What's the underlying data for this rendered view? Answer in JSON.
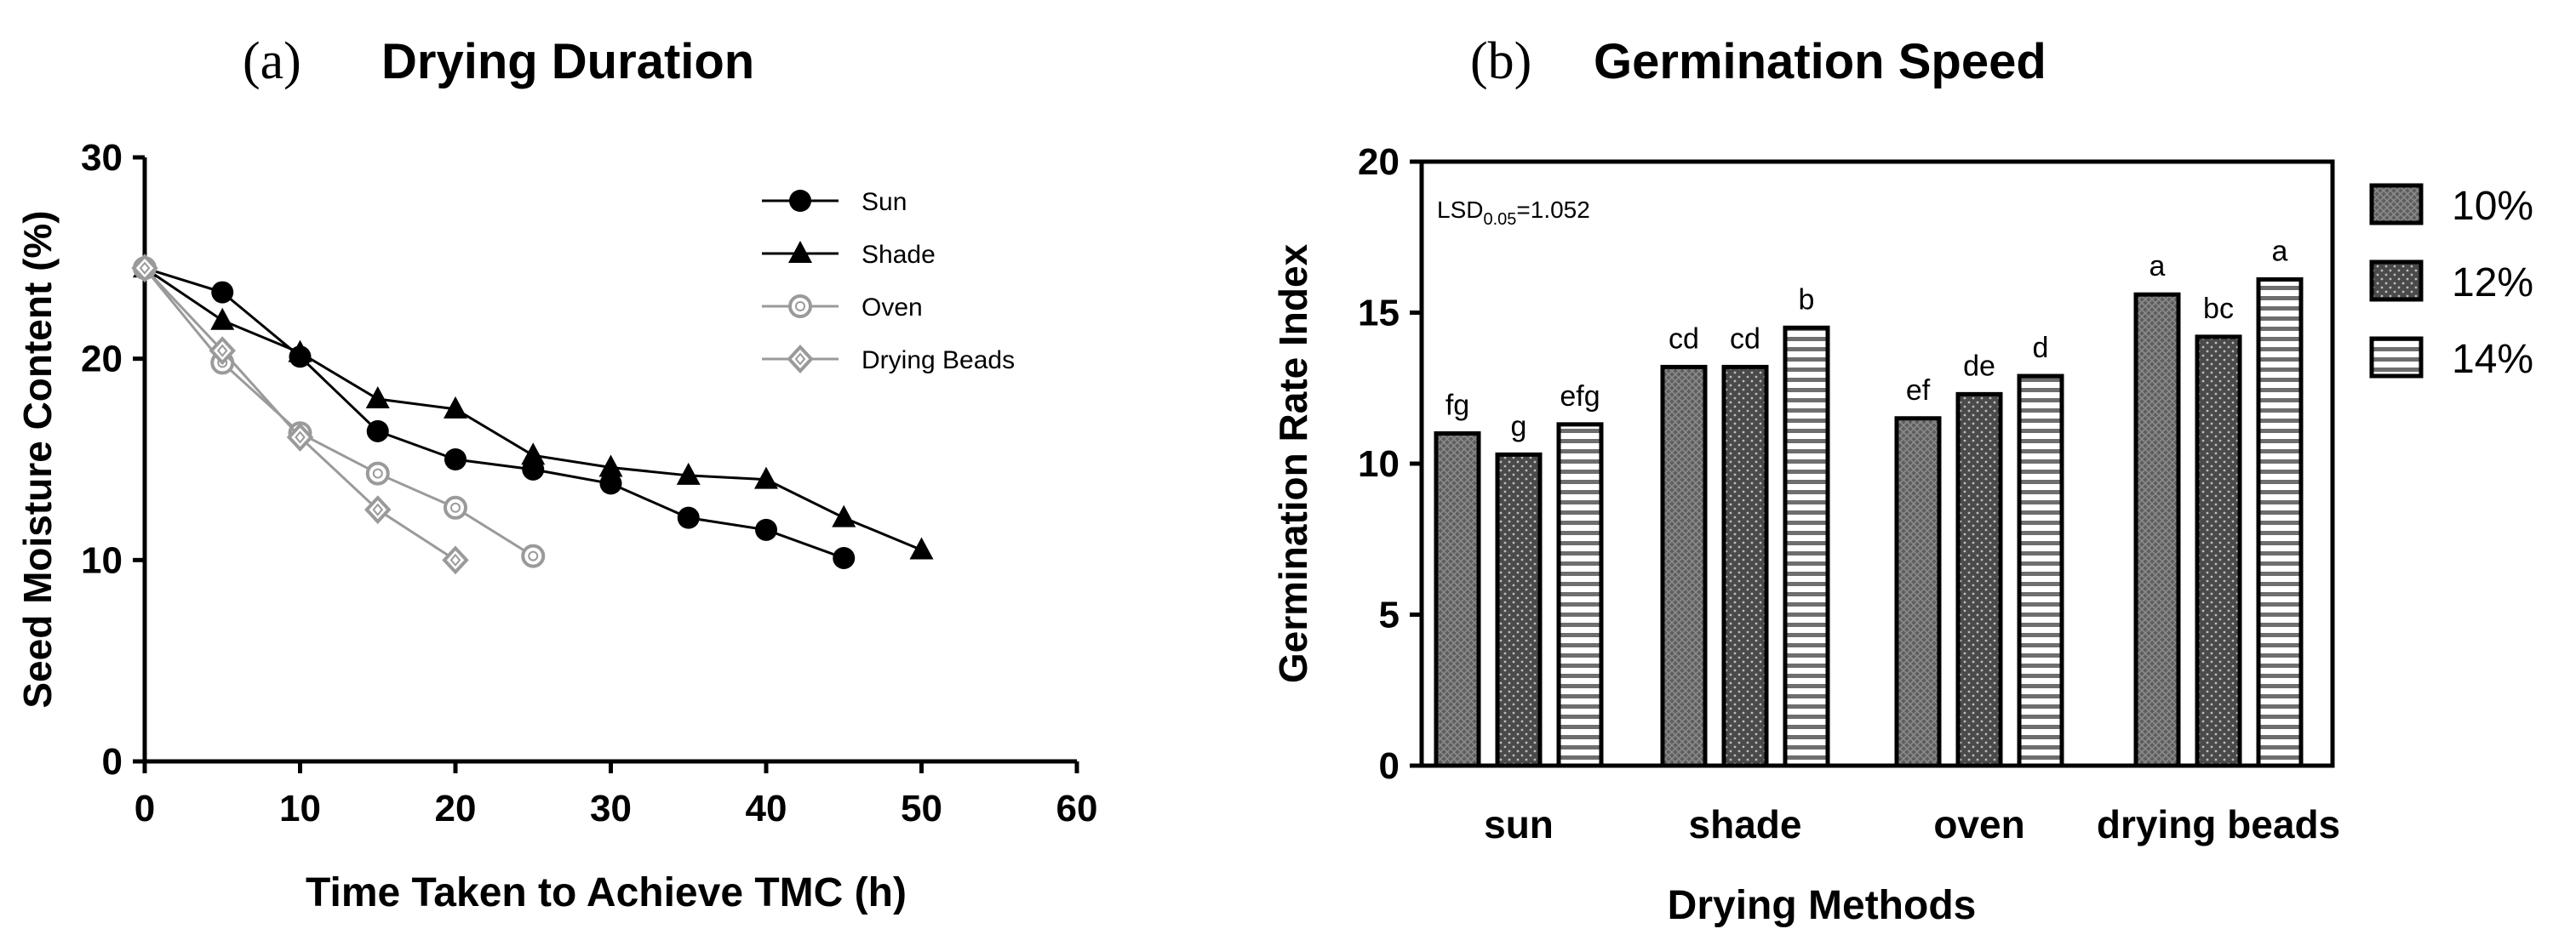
{
  "colors": {
    "ink": "#000000",
    "light_series": "#9a9a9a",
    "bar_dark": "#555555",
    "bar_mid": "#666666",
    "bar_white": "#ffffff"
  },
  "chart_data": [
    {
      "panel": "(a)",
      "type": "line",
      "title": "Drying Duration",
      "xlabel": "Time Taken to Achieve TMC (h)",
      "ylabel": "Seed Moisture Content (%)",
      "xlim": [
        0,
        60
      ],
      "ylim": [
        0,
        30
      ],
      "xticks": [
        "0",
        "10",
        "20",
        "30",
        "40",
        "50",
        "60"
      ],
      "yticks": [
        "0",
        "10",
        "20",
        "30"
      ],
      "grid": false,
      "legend_position": "top-right",
      "series": [
        {
          "name": "Sun",
          "marker": "circle",
          "color": "#000000",
          "x": [
            0,
            5,
            10,
            15,
            20,
            25,
            30,
            35,
            40,
            45
          ],
          "y": [
            24.5,
            23.3,
            20.1,
            16.4,
            15.0,
            14.5,
            13.8,
            12.1,
            11.5,
            10.1
          ]
        },
        {
          "name": "Shade",
          "marker": "triangle",
          "color": "#000000",
          "x": [
            0,
            5,
            10,
            15,
            20,
            25,
            30,
            35,
            40,
            45,
            50
          ],
          "y": [
            24.5,
            21.9,
            20.3,
            18.0,
            17.5,
            15.2,
            14.6,
            14.2,
            14.0,
            12.1,
            10.5
          ]
        },
        {
          "name": "Oven",
          "marker": "open-circle",
          "color": "#9a9a9a",
          "x": [
            0,
            5,
            10,
            15,
            20,
            25
          ],
          "y": [
            24.5,
            19.8,
            16.3,
            14.3,
            12.6,
            10.2
          ]
        },
        {
          "name": "Drying Beads",
          "marker": "open-diamond",
          "color": "#9a9a9a",
          "x": [
            0,
            5,
            10,
            15,
            20
          ],
          "y": [
            24.5,
            20.4,
            16.1,
            12.5,
            10.0
          ]
        }
      ]
    },
    {
      "panel": "(b)",
      "type": "bar",
      "title": "Germination Speed",
      "xlabel": "Drying Methods",
      "ylabel": "Germination Rate Index",
      "ylim": [
        0,
        20
      ],
      "yticks": [
        "0",
        "5",
        "10",
        "15",
        "20"
      ],
      "categories": [
        "sun",
        "shade",
        "oven",
        "drying beads"
      ],
      "grid": false,
      "legend_position": "right",
      "annotation": {
        "main": "LSD",
        "sub": "0.05",
        "rest": "=1.052"
      },
      "series": [
        {
          "name": "10%",
          "pattern": "crosshatch",
          "values": [
            11.0,
            13.2,
            11.5,
            15.6
          ],
          "letters": [
            "fg",
            "cd",
            "ef",
            "a"
          ]
        },
        {
          "name": "12%",
          "pattern": "dots",
          "values": [
            10.3,
            13.2,
            12.3,
            14.2
          ],
          "letters": [
            "g",
            "cd",
            "de",
            "bc"
          ]
        },
        {
          "name": "14%",
          "pattern": "stripes",
          "values": [
            11.3,
            14.5,
            12.9,
            16.1
          ],
          "letters": [
            "efg",
            "b",
            "d",
            "a"
          ]
        }
      ]
    }
  ]
}
